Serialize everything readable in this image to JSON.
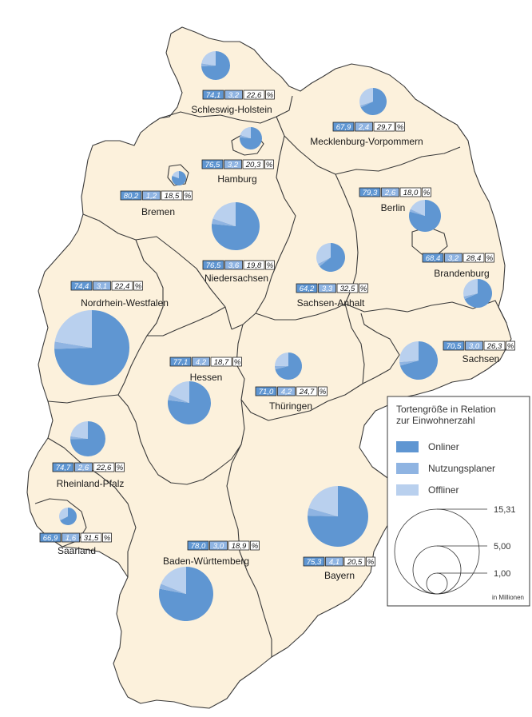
{
  "colors": {
    "onliner": "#5f96d2",
    "nutzungsplaner": "#8fb4e2",
    "offliner": "#b9d0ee",
    "land": "#fcf1dc",
    "border": "#3a3a3a"
  },
  "chart_data": {
    "type": "pie",
    "unit": "%",
    "series_names": [
      "Onliner",
      "Nutzungsplaner",
      "Offliner"
    ],
    "states": [
      {
        "name": "Schleswig-Holstein",
        "onliner": 74.1,
        "nutzungsplaner": 3.2,
        "offliner": 22.6,
        "labels": [
          "74,1",
          "3,2",
          "22,6"
        ]
      },
      {
        "name": "Mecklenburg-Vorpommern",
        "onliner": 67.9,
        "nutzungsplaner": 2.4,
        "offliner": 29.7,
        "labels": [
          "67,9",
          "2,4",
          "29,7"
        ]
      },
      {
        "name": "Hamburg",
        "onliner": 76.5,
        "nutzungsplaner": 3.2,
        "offliner": 20.3,
        "labels": [
          "76,5",
          "3,2",
          "20,3"
        ]
      },
      {
        "name": "Bremen",
        "onliner": 80.2,
        "nutzungsplaner": 1.2,
        "offliner": 18.5,
        "labels": [
          "80,2",
          "1,2",
          "18,5"
        ]
      },
      {
        "name": "Berlin",
        "onliner": 79.3,
        "nutzungsplaner": 2.6,
        "offliner": 18.0,
        "labels": [
          "79,3",
          "2,6",
          "18,0"
        ]
      },
      {
        "name": "Niedersachsen",
        "onliner": 76.5,
        "nutzungsplaner": 3.6,
        "offliner": 19.8,
        "labels": [
          "76,5",
          "3,6",
          "19,8"
        ]
      },
      {
        "name": "Brandenburg",
        "onliner": 68.4,
        "nutzungsplaner": 3.2,
        "offliner": 28.4,
        "labels": [
          "68,4",
          "3,2",
          "28,4"
        ]
      },
      {
        "name": "Nordrhein-Westfalen",
        "onliner": 74.4,
        "nutzungsplaner": 3.1,
        "offliner": 22.4,
        "labels": [
          "74,4",
          "3,1",
          "22,4"
        ]
      },
      {
        "name": "Sachsen-Anhalt",
        "onliner": 64.2,
        "nutzungsplaner": 3.3,
        "offliner": 32.5,
        "labels": [
          "64,2",
          "3,3",
          "32,5"
        ]
      },
      {
        "name": "Sachsen",
        "onliner": 70.5,
        "nutzungsplaner": 3.0,
        "offliner": 26.3,
        "labels": [
          "70,5",
          "3,0",
          "26,3"
        ]
      },
      {
        "name": "Hessen",
        "onliner": 77.1,
        "nutzungsplaner": 4.2,
        "offliner": 18.7,
        "labels": [
          "77,1",
          "4,2",
          "18,7"
        ]
      },
      {
        "name": "Thüringen",
        "onliner": 71.0,
        "nutzungsplaner": 4.2,
        "offliner": 24.7,
        "labels": [
          "71,0",
          "4,2",
          "24,7"
        ]
      },
      {
        "name": "Rheinland-Pfalz",
        "onliner": 74.7,
        "nutzungsplaner": 2.6,
        "offliner": 22.6,
        "labels": [
          "74,7",
          "2,6",
          "22,6"
        ]
      },
      {
        "name": "Saarland",
        "onliner": 66.9,
        "nutzungsplaner": 1.6,
        "offliner": 31.5,
        "labels": [
          "66,9",
          "1,6",
          "31,5"
        ]
      },
      {
        "name": "Baden-Württemberg",
        "onliner": 78.0,
        "nutzungsplaner": 3.0,
        "offliner": 18.9,
        "labels": [
          "78,0",
          "3,0",
          "18,9"
        ]
      },
      {
        "name": "Bayern",
        "onliner": 75.3,
        "nutzungsplaner": 4.1,
        "offliner": 20.5,
        "labels": [
          "75,3",
          "4,1",
          "20,5"
        ]
      }
    ]
  },
  "legend": {
    "title_line1": "Tortengröße in Relation",
    "title_line2": "zur Einwohnerzahl",
    "onliner_label": "Onliner",
    "nutzungsplaner_label": "Nutzungsplaner",
    "offliner_label": "Offliner",
    "scale_values": [
      "15,31",
      "5,00",
      "1,00"
    ],
    "unit": "in Millionen"
  }
}
